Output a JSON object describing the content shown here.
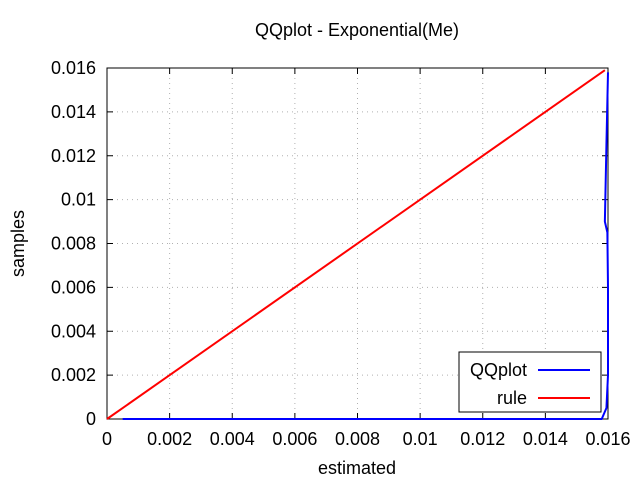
{
  "chart_data": {
    "type": "line",
    "title": "QQplot - Exponential(Me)",
    "xlabel": "estimated",
    "ylabel": "samples",
    "xlim": [
      0,
      0.016
    ],
    "ylim": [
      0,
      0.016
    ],
    "xticks": [
      "0",
      "0.002",
      "0.004",
      "0.006",
      "0.008",
      "0.01",
      "0.012",
      "0.014",
      "0.016"
    ],
    "yticks": [
      "0",
      "0.002",
      "0.004",
      "0.006",
      "0.008",
      "0.01",
      "0.012",
      "0.014",
      "0.016"
    ],
    "grid": true,
    "legend_position": "bottom-right",
    "series": [
      {
        "name": "QQplot",
        "color": "#0000ff",
        "x": [
          0.0005,
          0.003,
          0.006,
          0.009,
          0.012,
          0.015,
          0.0158,
          0.01595,
          0.016,
          0.016,
          0.01598,
          0.0159,
          0.01595,
          0.016
        ],
        "y": [
          0,
          0,
          0,
          0,
          0,
          0,
          0,
          0.0005,
          0.002,
          0.006,
          0.0085,
          0.009,
          0.0125,
          0.0158
        ]
      },
      {
        "name": "rule",
        "color": "#ff0000",
        "x": [
          0,
          0.0159
        ],
        "y": [
          0,
          0.0159
        ]
      }
    ]
  }
}
